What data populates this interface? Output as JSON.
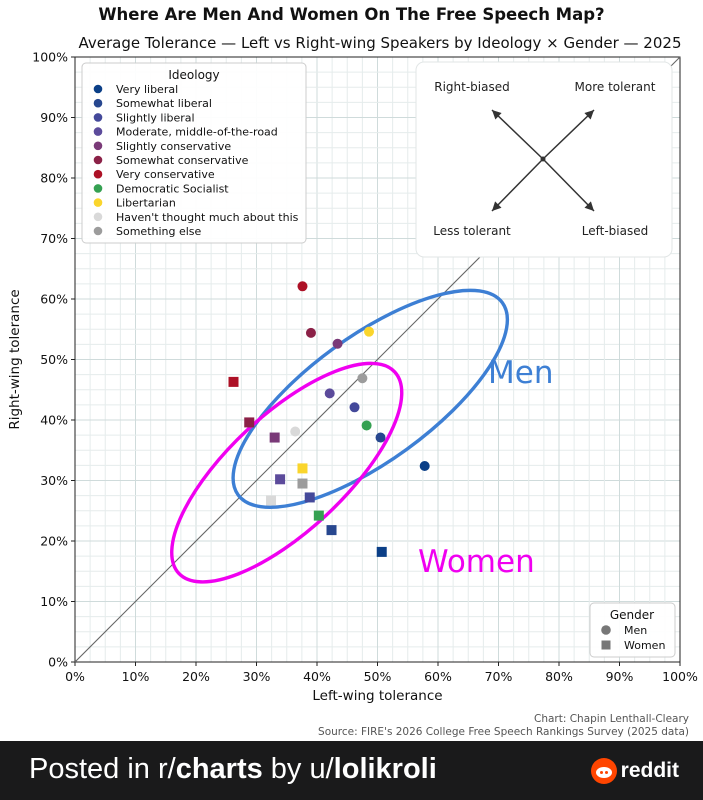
{
  "chart_data": {
    "type": "scatter",
    "title": "Where Are Men And Women On The Free Speech Map?",
    "subtitle": "Average Tolerance — Left vs Right-wing Speakers by Ideology × Gender — 2025",
    "xlabel": "Left-wing tolerance",
    "ylabel": "Right-wing tolerance",
    "xlim": [
      0,
      100
    ],
    "ylim": [
      0,
      100
    ],
    "xticks": [
      "0%",
      "10%",
      "20%",
      "30%",
      "40%",
      "50%",
      "60%",
      "70%",
      "80%",
      "90%",
      "100%"
    ],
    "yticks": [
      "0%",
      "10%",
      "20%",
      "30%",
      "40%",
      "50%",
      "60%",
      "70%",
      "80%",
      "90%",
      "100%"
    ],
    "grid": true,
    "diagonal": true,
    "ideology_legend": {
      "title": "Ideology",
      "placement": "top-left",
      "items": [
        {
          "label": "Very liberal",
          "color": "#0b3f87"
        },
        {
          "label": "Somewhat liberal",
          "color": "#27478f"
        },
        {
          "label": "Slightly liberal",
          "color": "#44499a"
        },
        {
          "label": "Moderate, middle-of-the-road",
          "color": "#5c4b9b"
        },
        {
          "label": "Slightly conservative",
          "color": "#7a3a78"
        },
        {
          "label": "Somewhat conservative",
          "color": "#8b2147"
        },
        {
          "label": "Very conservative",
          "color": "#ad1126"
        },
        {
          "label": "Democratic Socialist",
          "color": "#35a152"
        },
        {
          "label": "Libertarian",
          "color": "#fad52c"
        },
        {
          "label": "Haven't thought much about this",
          "color": "#d9d9d9"
        },
        {
          "label": "Something else",
          "color": "#9c9c9c"
        }
      ]
    },
    "gender_legend": {
      "title": "Gender",
      "placement": "bottom-right",
      "items": [
        {
          "label": "Men",
          "marker": "circle"
        },
        {
          "label": "Women",
          "marker": "square"
        }
      ]
    },
    "compass": {
      "labels": {
        "top_left": "Right-biased",
        "top_right": "More tolerant",
        "bottom_left": "Less tolerant",
        "bottom_right": "Left-biased"
      }
    },
    "series": [
      {
        "name": "Men",
        "marker": "circle",
        "points": [
          {
            "ideology": "Very liberal",
            "x": 57.8,
            "y": 32.4
          },
          {
            "ideology": "Somewhat liberal",
            "x": 50.5,
            "y": 37.1
          },
          {
            "ideology": "Slightly liberal",
            "x": 46.2,
            "y": 42.1
          },
          {
            "ideology": "Moderate, middle-of-the-road",
            "x": 42.1,
            "y": 44.4
          },
          {
            "ideology": "Slightly conservative",
            "x": 43.4,
            "y": 52.6
          },
          {
            "ideology": "Somewhat conservative",
            "x": 39.0,
            "y": 54.4
          },
          {
            "ideology": "Very conservative",
            "x": 37.6,
            "y": 62.1
          },
          {
            "ideology": "Democratic Socialist",
            "x": 48.2,
            "y": 39.1
          },
          {
            "ideology": "Libertarian",
            "x": 48.6,
            "y": 54.6
          },
          {
            "ideology": "Haven't thought much about this",
            "x": 36.4,
            "y": 38.1
          },
          {
            "ideology": "Something else",
            "x": 47.5,
            "y": 46.9
          }
        ]
      },
      {
        "name": "Women",
        "marker": "square",
        "points": [
          {
            "ideology": "Very liberal",
            "x": 50.7,
            "y": 18.2
          },
          {
            "ideology": "Somewhat liberal",
            "x": 42.4,
            "y": 21.8
          },
          {
            "ideology": "Slightly liberal",
            "x": 38.8,
            "y": 27.2
          },
          {
            "ideology": "Moderate, middle-of-the-road",
            "x": 33.9,
            "y": 30.2
          },
          {
            "ideology": "Slightly conservative",
            "x": 33.0,
            "y": 37.1
          },
          {
            "ideology": "Somewhat conservative",
            "x": 28.8,
            "y": 39.6
          },
          {
            "ideology": "Very conservative",
            "x": 26.2,
            "y": 46.3
          },
          {
            "ideology": "Democratic Socialist",
            "x": 40.3,
            "y": 24.2
          },
          {
            "ideology": "Libertarian",
            "x": 37.6,
            "y": 32.0
          },
          {
            "ideology": "Haven't thought much about this",
            "x": 32.4,
            "y": 26.7
          },
          {
            "ideology": "Something else",
            "x": 37.6,
            "y": 29.5
          }
        ]
      }
    ],
    "ellipses": [
      {
        "label": "Men",
        "color": "#3d7fd4",
        "center": [
          48.8,
          43.5
        ],
        "semi_axes": [
          27.0,
          10.3
        ],
        "angle_deg": -36
      },
      {
        "label": "Women",
        "color": "#f000f0",
        "center": [
          35.0,
          31.3
        ],
        "semi_axes": [
          24.4,
          9.6
        ],
        "angle_deg": -43
      }
    ]
  },
  "credit": {
    "chart_by": "Chart: Chapin Lenthall-Cleary",
    "source": "Source: FIRE's 2026 College Free Speech Rankings Survey (2025 data)"
  },
  "footer": {
    "posted_in": "Posted in r/",
    "subreddit": "charts",
    "by": " by u/",
    "user": "lolikroli",
    "brand": "reddit"
  }
}
